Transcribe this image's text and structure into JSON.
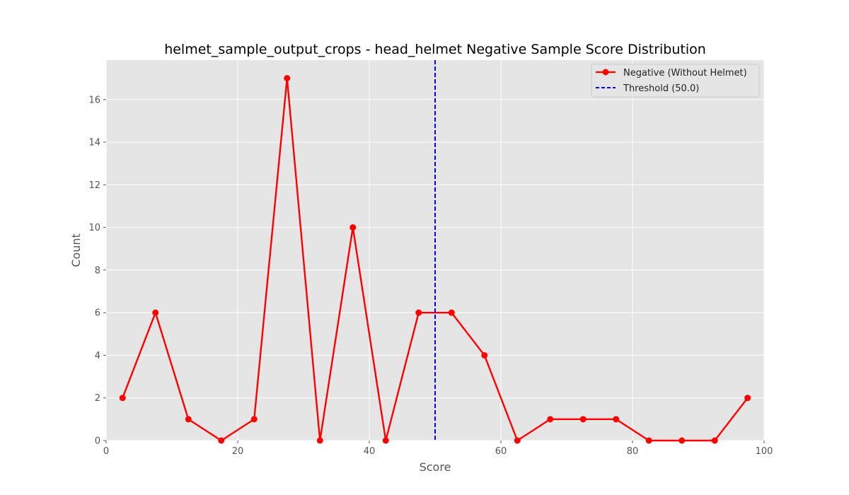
{
  "chart_data": {
    "type": "line",
    "title": "helmet_sample_output_crops - head_helmet Negative Sample Score Distribution",
    "xlabel": "Score",
    "ylabel": "Count",
    "xlim": [
      0,
      100
    ],
    "ylim": [
      0,
      17.85
    ],
    "xticks": [
      0,
      20,
      40,
      60,
      80,
      100
    ],
    "yticks": [
      0,
      2,
      4,
      6,
      8,
      10,
      12,
      14,
      16
    ],
    "grid": true,
    "legend_position": "top-right",
    "series": [
      {
        "name": "Negative (Without Helmet)",
        "color": "#ff0000",
        "marker": "circle",
        "x": [
          2.5,
          7.5,
          12.5,
          17.5,
          22.5,
          27.5,
          32.5,
          37.5,
          42.5,
          47.5,
          52.5,
          57.5,
          62.5,
          67.5,
          72.5,
          77.5,
          82.5,
          87.5,
          92.5,
          97.5
        ],
        "y": [
          2,
          6,
          1,
          0,
          1,
          17,
          0,
          10,
          0,
          6,
          6,
          4,
          0,
          1,
          1,
          1,
          0,
          0,
          0,
          2
        ]
      }
    ],
    "threshold": {
      "label": "Threshold (50.0)",
      "value": 50.0,
      "color": "#0000ff",
      "style": "dashed"
    }
  }
}
